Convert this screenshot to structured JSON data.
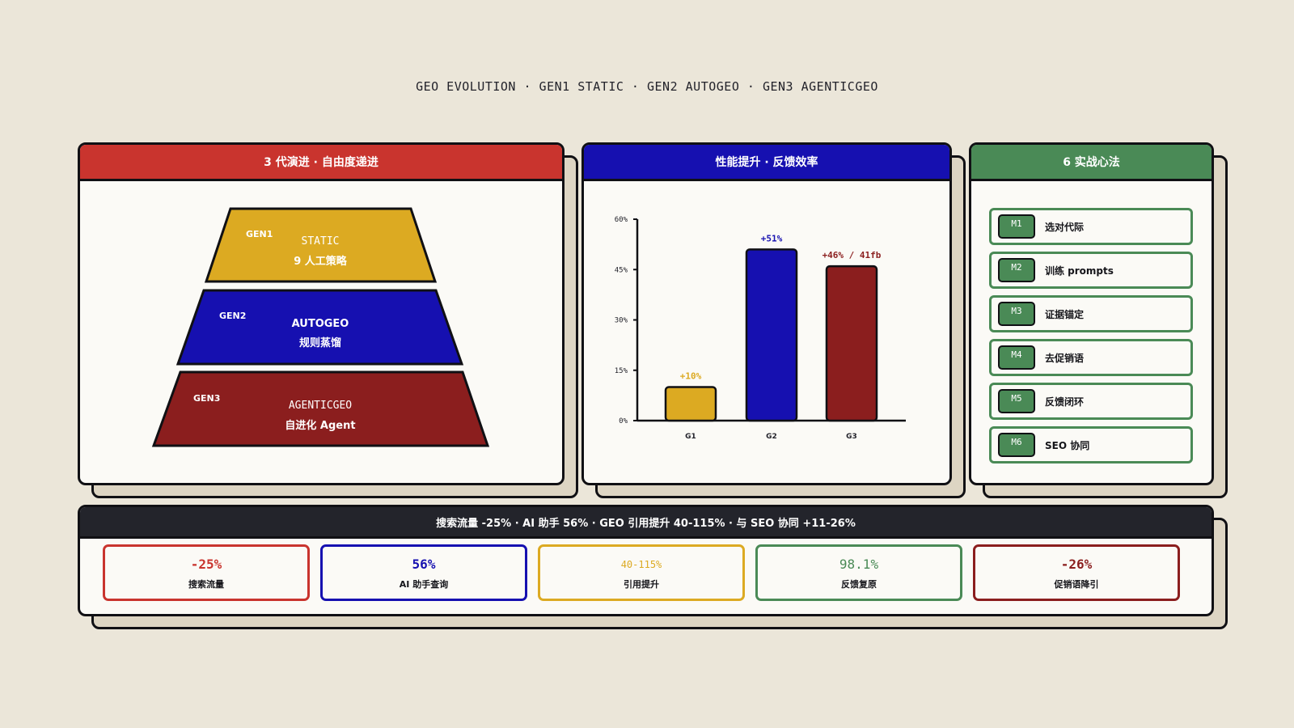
{
  "header": {
    "title": "GEO EVOLUTION · GEN1 STATIC · GEN2 AUTOGEO · GEN3 AGENTICGEO"
  },
  "panels": {
    "evolution": {
      "title": "3 代演进 · 自由度递进",
      "tiers": [
        {
          "gen": "GEN1",
          "name": "STATIC",
          "desc": "9 人工策略",
          "color": "#dcaa22"
        },
        {
          "gen": "GEN2",
          "name": "AUTOGEO",
          "desc": "规则蒸馏",
          "color": "#1610b0"
        },
        {
          "gen": "GEN3",
          "name": "AGENTICGEO",
          "desc": "自进化 Agent",
          "color": "#8b1e1e"
        }
      ]
    },
    "performance": {
      "title": "性能提升 · 反馈效率"
    },
    "tips": {
      "title": "6 实战心法",
      "items": [
        {
          "code": "M1",
          "label": "选对代际"
        },
        {
          "code": "M2",
          "label": "训练 prompts"
        },
        {
          "code": "M3",
          "label": "证据锚定"
        },
        {
          "code": "M4",
          "label": "去促销语"
        },
        {
          "code": "M5",
          "label": "反馈闭环"
        },
        {
          "code": "M6",
          "label": "SEO 协同"
        }
      ]
    }
  },
  "chart_data": {
    "type": "bar",
    "title": "性能提升 · 反馈效率",
    "categories": [
      "G1",
      "G2",
      "G3"
    ],
    "values": [
      10,
      51,
      46
    ],
    "data_labels": [
      "+10%",
      "+51%",
      "+46% / 41fb"
    ],
    "colors": [
      "#dcaa22",
      "#1610b0",
      "#8b1e1e"
    ],
    "yticks": [
      "0%",
      "15%",
      "30%",
      "45%",
      "60%"
    ],
    "ylim": [
      0,
      60
    ],
    "grid": false,
    "legend": "none"
  },
  "summary": {
    "title": "搜索流量 -25% · AI 助手 56% · GEO 引用提升 40-115% · 与 SEO 协同 +11-26%",
    "stats": [
      {
        "value": "-25%",
        "label": "搜索流量",
        "color": "#c9342e"
      },
      {
        "value": "56%",
        "label": "AI 助手查询",
        "color": "#1610b0"
      },
      {
        "value": "40-115%",
        "label": "引用提升",
        "color": "#dcaa22"
      },
      {
        "value": "98.1%",
        "label": "反馈复原",
        "color": "#4a8a56"
      },
      {
        "value": "-26%",
        "label": "促销语降引",
        "color": "#8b1e1e"
      }
    ]
  }
}
